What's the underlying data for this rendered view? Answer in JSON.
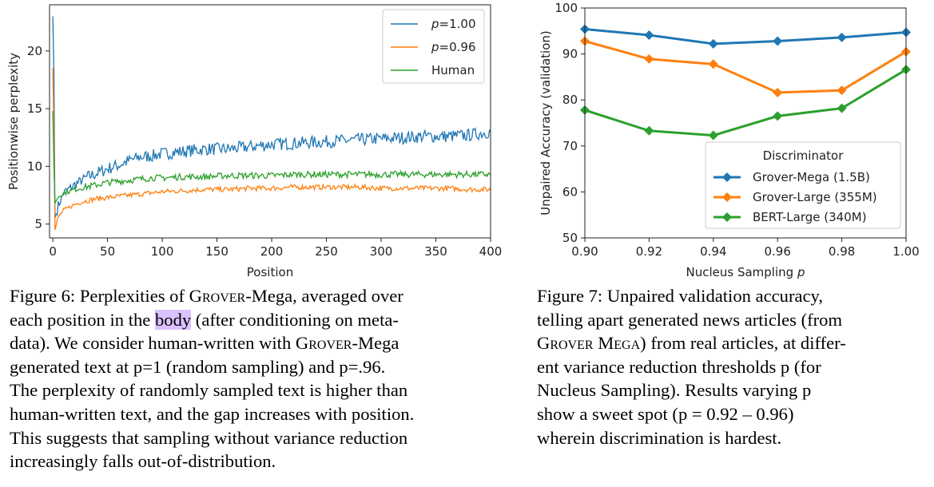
{
  "chart_data": [
    {
      "type": "line",
      "title": "",
      "xlabel": "Position",
      "ylabel": "Positionwise perplexity",
      "xlim": [
        -3,
        400
      ],
      "ylim": [
        3.8,
        24
      ],
      "xticks": [
        0,
        50,
        100,
        150,
        200,
        250,
        300,
        350,
        400
      ],
      "yticks": [
        5,
        10,
        15,
        20
      ],
      "legend_position": "top-right",
      "series": [
        {
          "name": "p=1.00",
          "color": "#1f77b4",
          "x": [
            0,
            1,
            2,
            5,
            10,
            20,
            30,
            40,
            50,
            60,
            70,
            80,
            90,
            100,
            120,
            140,
            160,
            180,
            200,
            220,
            240,
            260,
            280,
            300,
            320,
            340,
            360,
            380,
            400
          ],
          "y": [
            23,
            18,
            5.5,
            6.6,
            7.7,
            8.4,
            9.0,
            9.4,
            9.8,
            10.1,
            10.5,
            10.8,
            10.9,
            11.1,
            11.3,
            11.5,
            11.5,
            11.7,
            11.9,
            12.0,
            12.1,
            12.2,
            12.3,
            12.4,
            12.5,
            12.6,
            12.6,
            12.7,
            13.0
          ]
        },
        {
          "name": "p=0.96",
          "color": "#ff7f0e",
          "x": [
            0,
            1,
            2,
            5,
            10,
            20,
            30,
            40,
            50,
            60,
            70,
            80,
            90,
            100,
            120,
            140,
            160,
            180,
            200,
            220,
            240,
            260,
            280,
            300,
            320,
            340,
            360,
            380,
            400
          ],
          "y": [
            18.5,
            13,
            4.5,
            5.6,
            6.2,
            6.7,
            7.0,
            7.2,
            7.3,
            7.4,
            7.5,
            7.6,
            7.7,
            7.8,
            7.9,
            8.0,
            8.0,
            8.1,
            8.1,
            8.2,
            8.2,
            8.2,
            8.2,
            8.1,
            8.1,
            8.1,
            8.1,
            8.0,
            8.0
          ]
        },
        {
          "name": "Human",
          "color": "#2ca02c",
          "x": [
            0,
            1,
            2,
            5,
            10,
            20,
            30,
            40,
            50,
            60,
            70,
            80,
            90,
            100,
            120,
            140,
            160,
            180,
            200,
            220,
            240,
            260,
            280,
            300,
            320,
            340,
            360,
            380,
            400
          ],
          "y": [
            14.8,
            10,
            6.8,
            7.4,
            7.7,
            8.0,
            8.2,
            8.4,
            8.6,
            8.7,
            8.8,
            8.9,
            9.0,
            9.0,
            9.1,
            9.1,
            9.2,
            9.2,
            9.2,
            9.3,
            9.3,
            9.3,
            9.3,
            9.3,
            9.3,
            9.3,
            9.3,
            9.3,
            9.3
          ]
        }
      ]
    },
    {
      "type": "line",
      "title": "",
      "xlabel": "Nucleus Sampling p",
      "ylabel": "Unpaired Accuracy (validation)",
      "xlim": [
        0.9,
        1.0
      ],
      "ylim": [
        50,
        100
      ],
      "xticks": [
        0.9,
        0.92,
        0.94,
        0.96,
        0.98,
        1.0
      ],
      "xtick_labels": [
        "0.90",
        "0.92",
        "0.94",
        "0.96",
        "0.98",
        "1.00"
      ],
      "yticks": [
        50,
        60,
        70,
        80,
        90,
        100
      ],
      "legend_title": "Discriminator",
      "legend_position": "lower-right",
      "marker": "diamond",
      "series": [
        {
          "name": "Grover-Mega (1.5B)",
          "color": "#1f77b4",
          "x": [
            0.9,
            0.92,
            0.94,
            0.96,
            0.98,
            1.0
          ],
          "y": [
            95.4,
            94.1,
            92.2,
            92.8,
            93.6,
            94.7
          ]
        },
        {
          "name": "Grover-Large (355M)",
          "color": "#ff7f0e",
          "x": [
            0.9,
            0.92,
            0.94,
            0.96,
            0.98,
            1.0
          ],
          "y": [
            92.8,
            88.9,
            87.8,
            81.6,
            82.1,
            90.5
          ]
        },
        {
          "name": "BERT-Large (340M)",
          "color": "#2ca02c",
          "x": [
            0.9,
            0.92,
            0.94,
            0.96,
            0.98,
            1.0
          ],
          "y": [
            77.8,
            73.3,
            72.3,
            76.5,
            78.2,
            86.6
          ]
        }
      ]
    }
  ],
  "fig6_caption": {
    "l1_a": "Figure 6: Perplexities of ",
    "l1_sc": "Grover",
    "l1_b": "-Mega, averaged over",
    "l2_a": "each position in the ",
    "l2_hl": "body",
    "l2_b": " (after conditioning on meta-",
    "l3": "data). We consider human-written with ",
    "l3_sc": "Grover",
    "l3_b": "-Mega",
    "l4": "generated text at p=1 (random sampling) and p=.96.",
    "l5": "The perplexity of randomly sampled text is higher than",
    "l6": "human-written text, and the gap increases with position.",
    "l7": "This suggests that sampling without variance reduction",
    "l8": "increasingly falls out-of-distribution."
  },
  "fig7_caption": {
    "l1": "Figure 7: Unpaired validation accuracy,",
    "l2": "telling apart generated news articles (from",
    "l3_sc": "Grover Mega",
    "l3_b": ") from real articles, at differ-",
    "l4": "ent variance reduction thresholds p (for",
    "l5": "Nucleus Sampling). Results varying p",
    "l6": "show a sweet spot (p = 0.92 – 0.96)",
    "l7": "wherein discrimination is hardest."
  }
}
